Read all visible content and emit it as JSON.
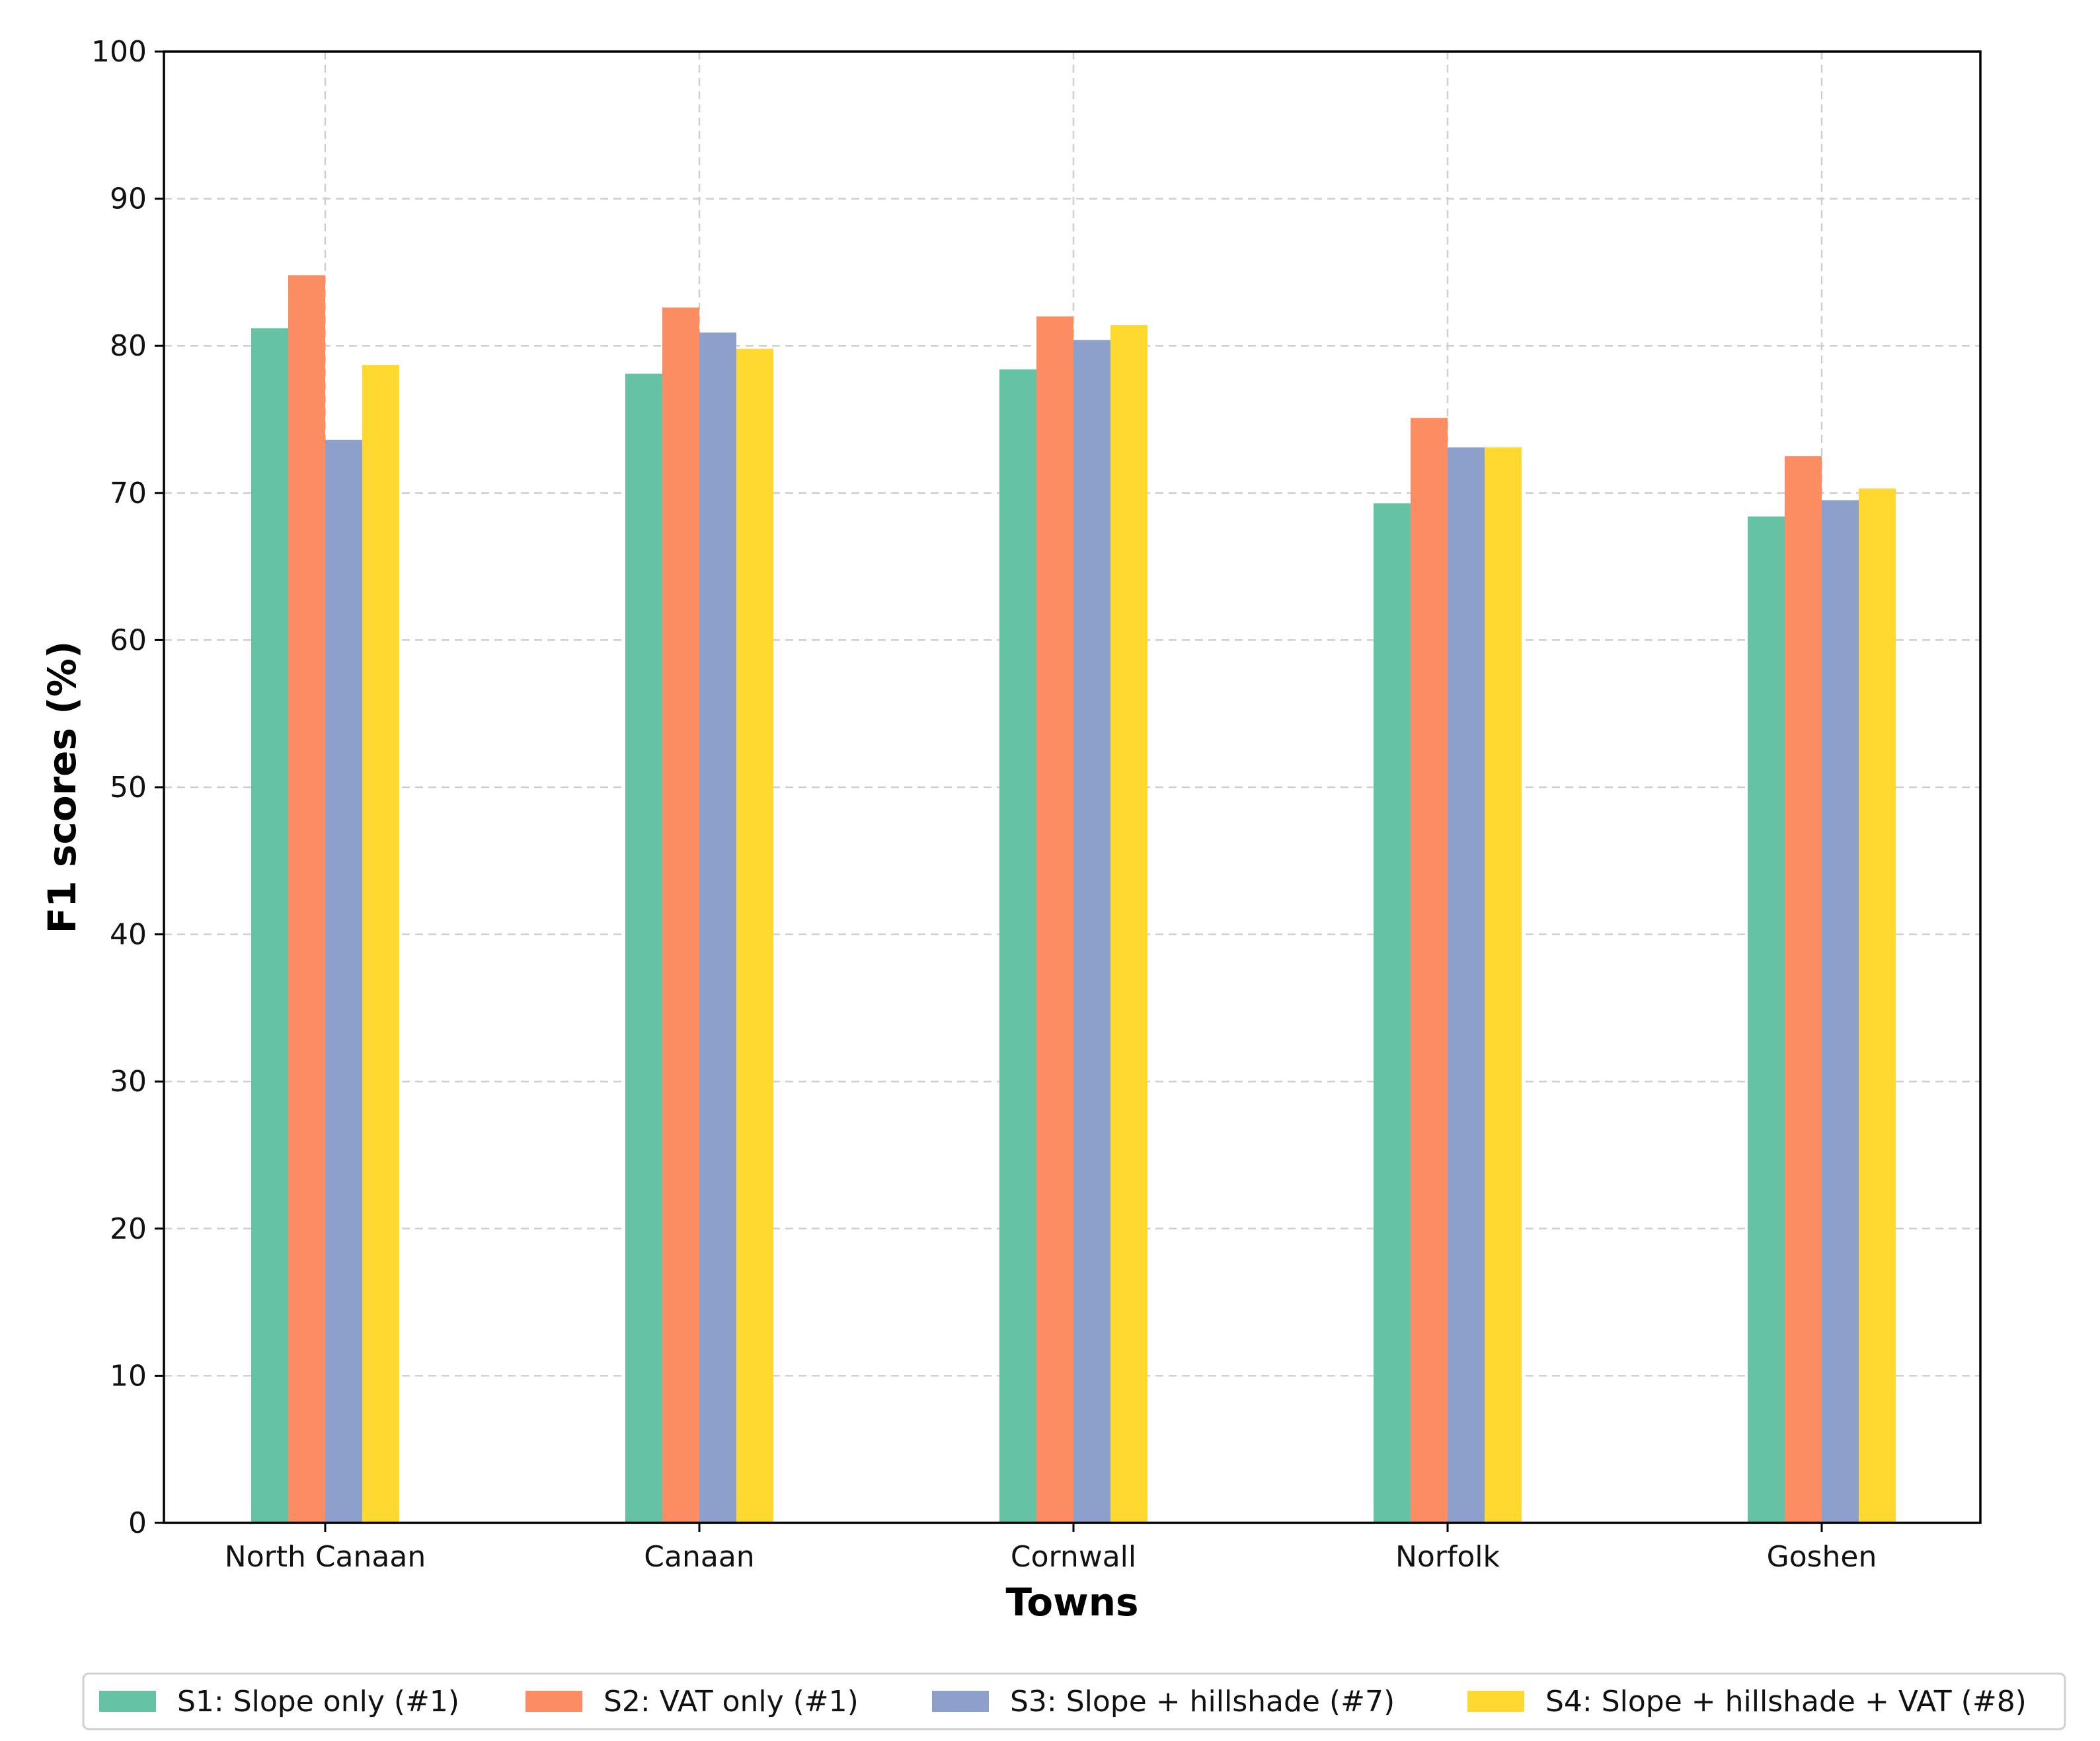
{
  "chart_data": {
    "type": "bar",
    "title": "",
    "xlabel": "Towns",
    "ylabel": "F1 scores (%)",
    "ylim": [
      0,
      100
    ],
    "yticks": [
      0,
      10,
      20,
      30,
      40,
      50,
      60,
      70,
      80,
      90,
      100
    ],
    "grid": true,
    "legend_position": "bottom",
    "categories": [
      "North Canaan",
      "Canaan",
      "Cornwall",
      "Norfolk",
      "Goshen"
    ],
    "series": [
      {
        "name": "S1: Slope only (#1)",
        "color": "#66c2a5",
        "values": [
          81.2,
          78.1,
          78.4,
          69.3,
          68.4
        ]
      },
      {
        "name": "S2: VAT only (#1)",
        "color": "#fc8d62",
        "values": [
          84.8,
          82.6,
          82.0,
          75.1,
          72.5
        ]
      },
      {
        "name": "S3: Slope + hillshade (#7)",
        "color": "#8da0cb",
        "values": [
          73.6,
          80.9,
          80.4,
          73.1,
          69.5
        ]
      },
      {
        "name": "S4: Slope + hillshade + VAT (#8)",
        "color": "#ffd92f",
        "values": [
          78.7,
          79.8,
          81.4,
          73.1,
          70.3
        ]
      }
    ]
  }
}
